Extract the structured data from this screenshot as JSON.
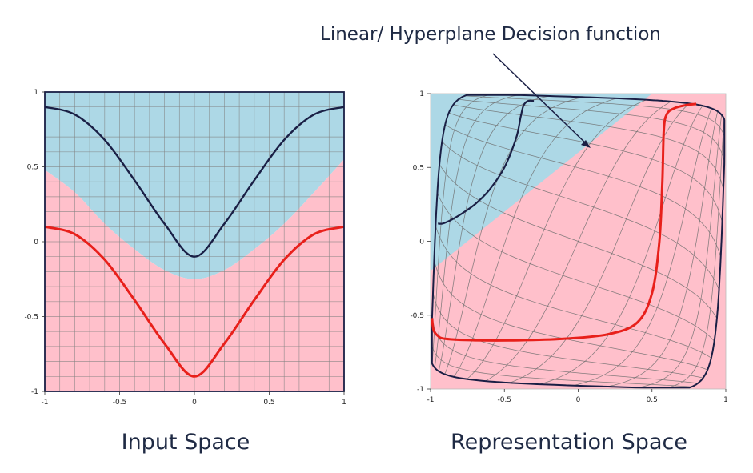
{
  "annotation": {
    "text": "Linear/ Hyperplane Decision function"
  },
  "colors": {
    "blue_region": "#add8e6",
    "pink_region": "#ffc0cb",
    "dark_curve": "#1a1f45",
    "red_curve": "#e8201b",
    "grid": "#808080",
    "frame": "#1a1f45"
  },
  "chart_data": [
    {
      "type": "line",
      "caption": "Input Space",
      "xlim": [
        -1,
        1
      ],
      "ylim": [
        -1,
        1
      ],
      "xticks": [
        "-1",
        "-0.5",
        "0",
        "0.5",
        "1"
      ],
      "yticks": [
        "1",
        "0.5",
        "0",
        "-0.5",
        "-1"
      ],
      "grid": true,
      "series": [
        {
          "color": "dark",
          "x": [
            -1,
            -0.8,
            -0.6,
            -0.4,
            -0.2,
            0,
            0.2,
            0.4,
            0.6,
            0.8,
            1
          ],
          "y": [
            0.9,
            0.85,
            0.68,
            0.41,
            0.12,
            -0.1,
            0.12,
            0.41,
            0.68,
            0.85,
            0.9
          ]
        },
        {
          "color": "red",
          "x": [
            -1,
            -0.8,
            -0.6,
            -0.4,
            -0.2,
            0,
            0.2,
            0.4,
            0.6,
            0.8,
            1
          ],
          "y": [
            0.1,
            0.05,
            -0.12,
            -0.39,
            -0.68,
            -0.9,
            -0.68,
            -0.39,
            -0.12,
            0.05,
            0.1
          ]
        }
      ],
      "regions": {
        "upper": "blue",
        "lower": "pink",
        "boundary_x": [
          -1,
          -0.8,
          -0.6,
          -0.4,
          -0.2,
          0,
          0.2,
          0.4,
          0.6,
          0.8,
          1
        ],
        "boundary_y": [
          0.48,
          0.33,
          0.12,
          -0.05,
          -0.19,
          -0.25,
          -0.19,
          -0.05,
          0.12,
          0.33,
          0.55
        ]
      }
    },
    {
      "type": "line",
      "caption": "Representation Space",
      "xlim": [
        -1,
        1
      ],
      "ylim": [
        -1,
        1
      ],
      "xticks": [
        "-1",
        "-0.5",
        "0",
        "0.5",
        "1"
      ],
      "yticks": [
        "1",
        "0.5",
        "0",
        "-0.5",
        "-1"
      ],
      "grid": false,
      "series": [
        {
          "color": "dark",
          "x": [
            -0.95,
            -0.92,
            -0.87,
            -0.8,
            -0.7,
            -0.6,
            -0.5,
            -0.42,
            -0.39,
            -0.37,
            -0.34,
            -0.3
          ],
          "y": [
            0.12,
            0.12,
            0.14,
            0.18,
            0.25,
            0.35,
            0.5,
            0.7,
            0.84,
            0.92,
            0.95,
            0.95
          ]
        },
        {
          "color": "red",
          "x": [
            -0.99,
            -0.98,
            -0.95,
            -0.9,
            -0.7,
            -0.4,
            -0.1,
            0.2,
            0.4,
            0.5,
            0.55,
            0.57,
            0.58,
            0.6,
            0.65,
            0.72,
            0.8
          ],
          "y": [
            -0.52,
            -0.6,
            -0.64,
            -0.66,
            -0.67,
            -0.67,
            -0.66,
            -0.63,
            -0.55,
            -0.35,
            0.0,
            0.4,
            0.75,
            0.86,
            0.9,
            0.92,
            0.93
          ]
        }
      ],
      "decision_line": {
        "x": [
          -1,
          0.5
        ],
        "y": [
          -0.2,
          1
        ]
      }
    }
  ]
}
